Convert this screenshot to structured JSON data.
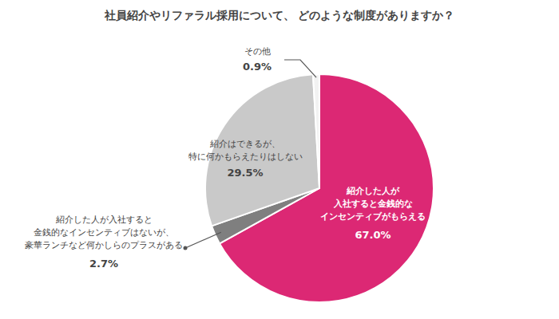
{
  "chart_data": {
    "type": "pie",
    "title": "社員紹介やリファラル採用について、 どのような制度がありますか？",
    "categories": [
      "紹介した人が\n入社すると金銭的な\nインセンティブがもらえる",
      "紹介した人が入社すると\n金銭的なインセンティブはないが、\n豪華ランチなど何かしらのプラスがある",
      "紹介はできるが、\n特に何かもらえたりはしない",
      "その他"
    ],
    "values": [
      67.0,
      2.7,
      29.5,
      0.9
    ],
    "value_labels": [
      "67.0%",
      "2.7%",
      "29.5%",
      "0.9%"
    ],
    "colors": [
      "#dc2874",
      "#7f7f7f",
      "#c9c9c9",
      "#f2f2f2"
    ],
    "data_labels": true
  }
}
